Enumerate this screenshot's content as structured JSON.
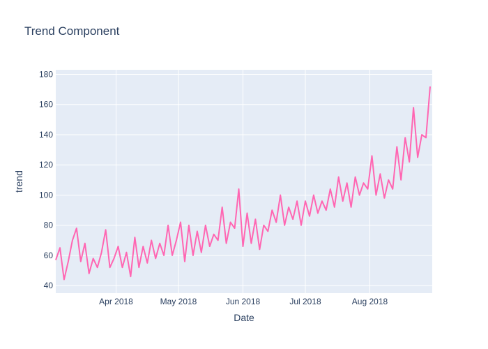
{
  "chart_data": {
    "type": "line",
    "title": "Trend Component",
    "x_label": "Date",
    "y_label": "trend",
    "x": [
      "2018-03-03",
      "2018-03-05",
      "2018-03-07",
      "2018-03-09",
      "2018-03-11",
      "2018-03-13",
      "2018-03-15",
      "2018-03-17",
      "2018-03-19",
      "2018-03-21",
      "2018-03-23",
      "2018-03-25",
      "2018-03-27",
      "2018-03-29",
      "2018-03-31",
      "2018-04-02",
      "2018-04-04",
      "2018-04-06",
      "2018-04-08",
      "2018-04-10",
      "2018-04-12",
      "2018-04-14",
      "2018-04-16",
      "2018-04-18",
      "2018-04-20",
      "2018-04-22",
      "2018-04-24",
      "2018-04-26",
      "2018-04-28",
      "2018-04-30",
      "2018-05-02",
      "2018-05-04",
      "2018-05-06",
      "2018-05-08",
      "2018-05-10",
      "2018-05-12",
      "2018-05-14",
      "2018-05-16",
      "2018-05-18",
      "2018-05-20",
      "2018-05-22",
      "2018-05-24",
      "2018-05-26",
      "2018-05-28",
      "2018-05-30",
      "2018-06-01",
      "2018-06-03",
      "2018-06-05",
      "2018-06-07",
      "2018-06-09",
      "2018-06-11",
      "2018-06-13",
      "2018-06-15",
      "2018-06-17",
      "2018-06-19",
      "2018-06-21",
      "2018-06-23",
      "2018-06-25",
      "2018-06-27",
      "2018-06-29",
      "2018-07-01",
      "2018-07-03",
      "2018-07-05",
      "2018-07-07",
      "2018-07-09",
      "2018-07-11",
      "2018-07-13",
      "2018-07-15",
      "2018-07-17",
      "2018-07-19",
      "2018-07-21",
      "2018-07-23",
      "2018-07-25",
      "2018-07-27",
      "2018-07-29",
      "2018-07-31",
      "2018-08-02",
      "2018-08-04",
      "2018-08-06",
      "2018-08-08",
      "2018-08-10",
      "2018-08-12",
      "2018-08-14",
      "2018-08-16",
      "2018-08-18",
      "2018-08-20",
      "2018-08-22",
      "2018-08-24",
      "2018-08-26",
      "2018-08-28",
      "2018-08-30"
    ],
    "series": [
      {
        "name": "trend",
        "color": "#ff66b2",
        "values": [
          57,
          65,
          44,
          56,
          70,
          78,
          56,
          68,
          48,
          58,
          52,
          62,
          77,
          52,
          58,
          66,
          52,
          62,
          46,
          72,
          52,
          66,
          55,
          70,
          58,
          68,
          60,
          80,
          60,
          70,
          82,
          56,
          80,
          60,
          76,
          62,
          80,
          66,
          74,
          70,
          92,
          68,
          82,
          78,
          104,
          66,
          88,
          68,
          84,
          64,
          80,
          76,
          90,
          82,
          100,
          80,
          92,
          84,
          96,
          80,
          96,
          86,
          100,
          88,
          96,
          90,
          104,
          92,
          112,
          96,
          108,
          92,
          112,
          100,
          108,
          104,
          126,
          100,
          114,
          98,
          110,
          104,
          132,
          110,
          138,
          122,
          158,
          125,
          140,
          138,
          172
        ]
      }
    ],
    "xlim": [
      "2018-03-03",
      "2018-08-31"
    ],
    "xticks": [
      {
        "value": "2018-04-01",
        "label": "Apr 2018"
      },
      {
        "value": "2018-05-01",
        "label": "May 2018"
      },
      {
        "value": "2018-06-01",
        "label": "Jun 2018"
      },
      {
        "value": "2018-07-01",
        "label": "Jul 2018"
      },
      {
        "value": "2018-08-01",
        "label": "Aug 2018"
      }
    ],
    "ylim": [
      35,
      183
    ],
    "yticks": [
      40,
      60,
      80,
      100,
      120,
      140,
      160,
      180
    ],
    "grid": true
  }
}
